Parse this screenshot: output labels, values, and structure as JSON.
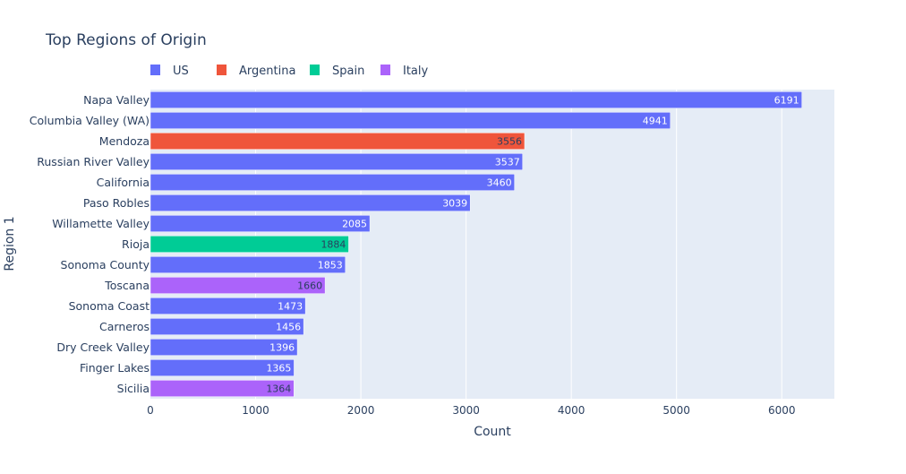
{
  "chart_data": {
    "type": "bar",
    "orientation": "horizontal",
    "title": "Top Regions of Origin",
    "xlabel": "Count",
    "ylabel": "Region 1",
    "xlim": [
      0,
      6500
    ],
    "x_ticks": [
      0,
      1000,
      2000,
      3000,
      4000,
      5000,
      6000
    ],
    "grid": true,
    "legend_position": "top-left, horizontal",
    "legend": [
      {
        "name": "US",
        "color": "#636efa"
      },
      {
        "name": "Argentina",
        "color": "#ef553b"
      },
      {
        "name": "Spain",
        "color": "#00cc96"
      },
      {
        "name": "Italy",
        "color": "#ab63fa"
      }
    ],
    "categories": [
      "Napa Valley",
      "Columbia Valley (WA)",
      "Mendoza",
      "Russian River Valley",
      "California",
      "Paso Robles",
      "Willamette Valley",
      "Rioja",
      "Sonoma County",
      "Toscana",
      "Sonoma Coast",
      "Carneros",
      "Dry Creek Valley",
      "Finger Lakes",
      "Sicilia"
    ],
    "values": [
      6191,
      4941,
      3556,
      3537,
      3460,
      3039,
      2085,
      1884,
      1853,
      1660,
      1473,
      1456,
      1396,
      1365,
      1364
    ],
    "groups": [
      "US",
      "US",
      "Argentina",
      "US",
      "US",
      "US",
      "US",
      "Spain",
      "US",
      "Italy",
      "US",
      "US",
      "US",
      "US",
      "Italy"
    ]
  }
}
